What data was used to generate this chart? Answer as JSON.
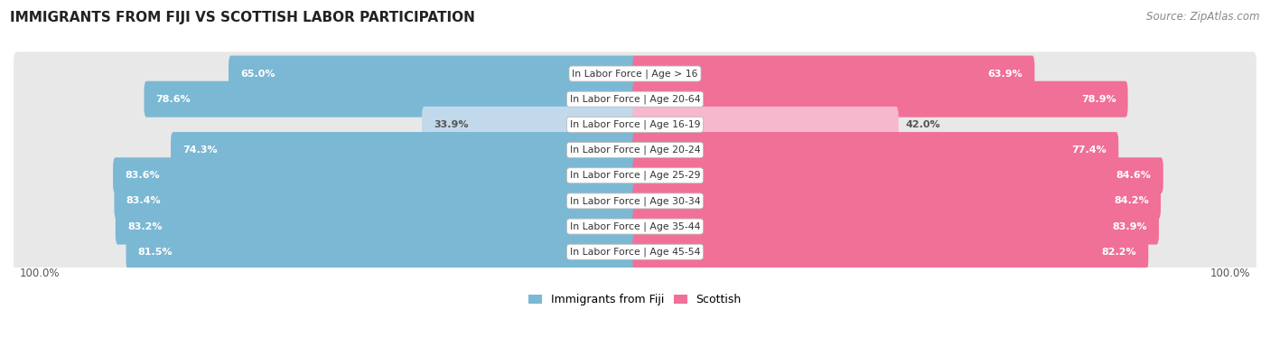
{
  "title": "IMMIGRANTS FROM FIJI VS SCOTTISH LABOR PARTICIPATION",
  "source": "Source: ZipAtlas.com",
  "categories": [
    "In Labor Force | Age > 16",
    "In Labor Force | Age 20-64",
    "In Labor Force | Age 16-19",
    "In Labor Force | Age 20-24",
    "In Labor Force | Age 25-29",
    "In Labor Force | Age 30-34",
    "In Labor Force | Age 35-44",
    "In Labor Force | Age 45-54"
  ],
  "fiji_values": [
    65.0,
    78.6,
    33.9,
    74.3,
    83.6,
    83.4,
    83.2,
    81.5
  ],
  "scottish_values": [
    63.9,
    78.9,
    42.0,
    77.4,
    84.6,
    84.2,
    83.9,
    82.2
  ],
  "fiji_color": "#7bb8d4",
  "fiji_color_light": "#c2d9eb",
  "scottish_color": "#f07098",
  "scottish_color_light": "#f5b8cc",
  "row_bg_color": "#e8e8e8",
  "label_color_white": "#ffffff",
  "label_color_dark": "#555555",
  "max_value": 100.0,
  "figure_bg": "#ffffff",
  "legend_fiji": "Immigrants from Fiji",
  "legend_scottish": "Scottish",
  "bottom_label": "100.0%"
}
